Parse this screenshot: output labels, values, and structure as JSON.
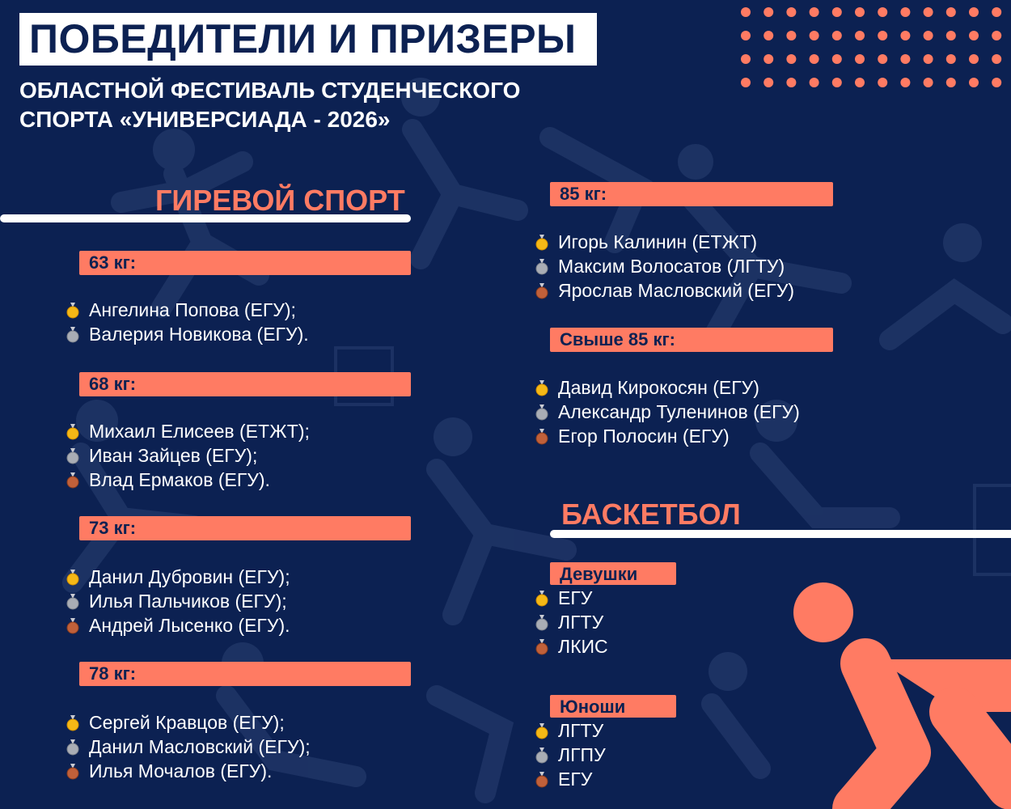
{
  "title": "ПОБЕДИТЕЛИ И ПРИЗЕРЫ",
  "subtitle": "ОБЛАСТНОЙ ФЕСТИВАЛЬ СТУДЕНЧЕСКОГО СПОРТА «УНИВЕРСИАДА - 2026»",
  "colors": {
    "background": "#0c2152",
    "accent": "#ff7b63",
    "text": "#ffffff"
  },
  "kettlebell": {
    "title": "ГИРЕВОЙ СПОРТ",
    "categories": [
      {
        "label": "63 кг:",
        "entries": [
          {
            "medal": "gold-medal-icon",
            "text": "Ангелина Попова (ЕГУ);"
          },
          {
            "medal": "silver-medal-icon",
            "text": "Валерия Новикова (ЕГУ)."
          }
        ]
      },
      {
        "label": "68 кг:",
        "entries": [
          {
            "medal": "gold-medal-icon",
            "text": "Михаил Елисеев (ЕТЖТ);"
          },
          {
            "medal": "silver-medal-icon",
            "text": "Иван Зайцев (ЕГУ);"
          },
          {
            "medal": "bronze-medal-icon",
            "text": "Влад Ермаков (ЕГУ)."
          }
        ]
      },
      {
        "label": "73 кг:",
        "entries": [
          {
            "medal": "gold-medal-icon",
            "text": "Данил Дубровин (ЕГУ);"
          },
          {
            "medal": "silver-medal-icon",
            "text": "Илья Пальчиков (ЕГУ);"
          },
          {
            "medal": "bronze-medal-icon",
            "text": "Андрей Лысенко (ЕГУ)."
          }
        ]
      },
      {
        "label": "78 кг:",
        "entries": [
          {
            "medal": "gold-medal-icon",
            "text": "Сергей Кравцов (ЕГУ);"
          },
          {
            "medal": "silver-medal-icon",
            "text": "Данил Масловский (ЕГУ);"
          },
          {
            "medal": "bronze-medal-icon",
            "text": "Илья Мочалов (ЕГУ)."
          }
        ]
      },
      {
        "label": "85 кг:",
        "entries": [
          {
            "medal": "gold-medal-icon",
            "text": "Игорь Калинин (ЕТЖТ)"
          },
          {
            "medal": "silver-medal-icon",
            "text": "Максим Волосатов (ЛГТУ)"
          },
          {
            "medal": "bronze-medal-icon",
            "text": "Ярослав Масловский (ЕГУ)"
          }
        ]
      },
      {
        "label": "Свыше 85 кг:",
        "entries": [
          {
            "medal": "gold-medal-icon",
            "text": "Давид Кирокосян (ЕГУ)"
          },
          {
            "medal": "silver-medal-icon",
            "text": "Александр Туленинов (ЕГУ)"
          },
          {
            "medal": "bronze-medal-icon",
            "text": "Егор Полосин (ЕГУ)"
          }
        ]
      }
    ]
  },
  "basketball": {
    "title": "БАСКЕТБОЛ",
    "categories": [
      {
        "label": "Девушки",
        "entries": [
          {
            "medal": "gold-medal-icon",
            "text": "ЕГУ"
          },
          {
            "medal": "silver-medal-icon",
            "text": "ЛГТУ"
          },
          {
            "medal": "bronze-medal-icon",
            "text": "ЛКИС"
          }
        ]
      },
      {
        "label": "Юноши",
        "entries": [
          {
            "medal": "gold-medal-icon",
            "text": "ЛГТУ"
          },
          {
            "medal": "silver-medal-icon",
            "text": "ЛГПУ"
          },
          {
            "medal": "bronze-medal-icon",
            "text": "ЕГУ"
          }
        ]
      }
    ]
  }
}
